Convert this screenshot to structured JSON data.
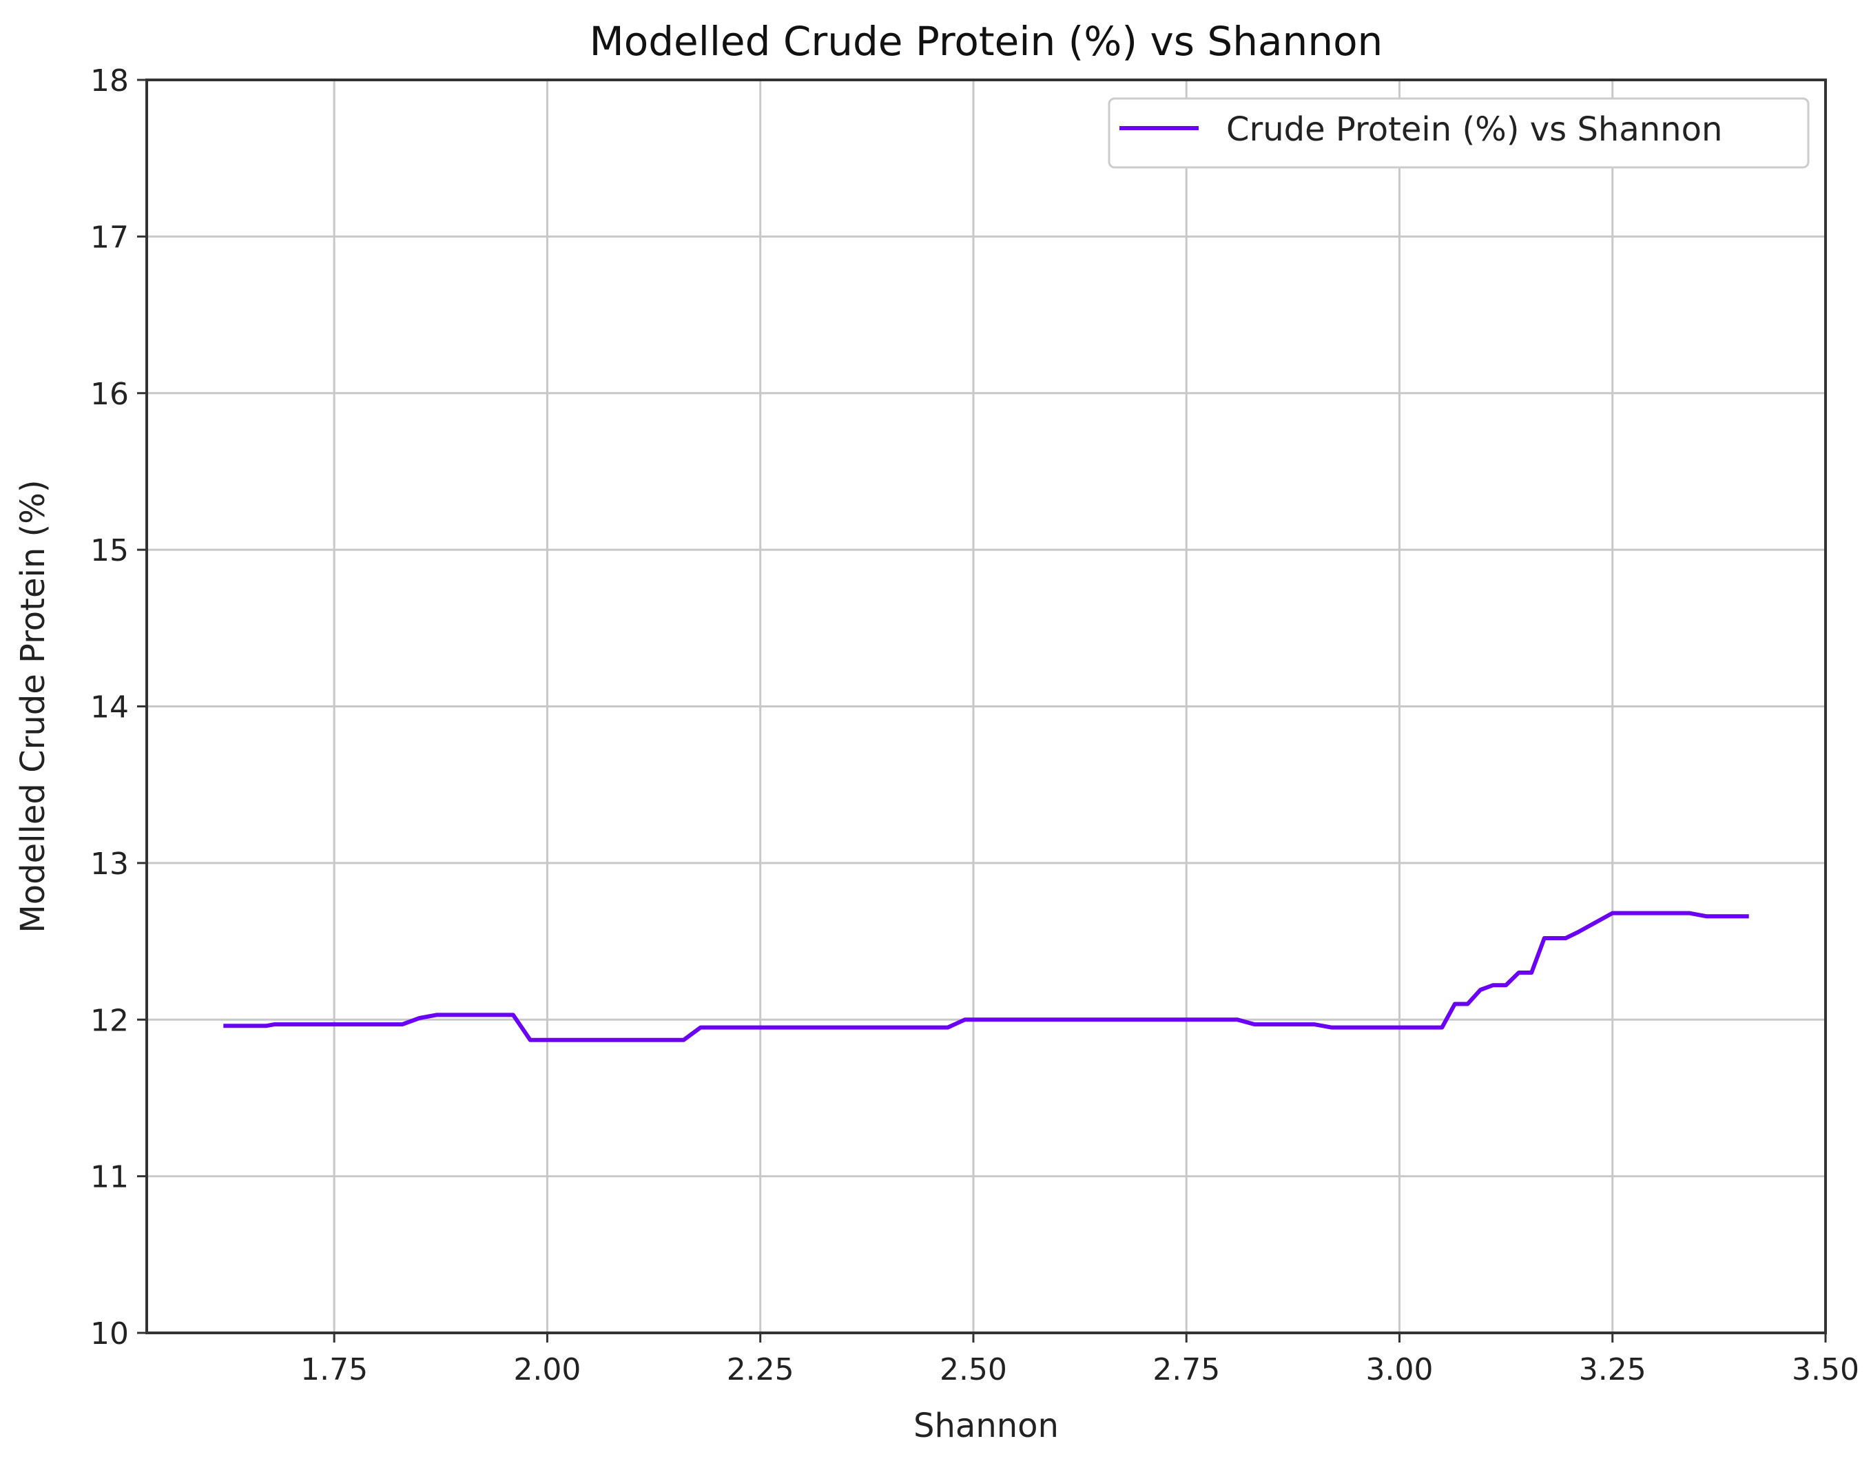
{
  "chart_data": {
    "type": "line",
    "title": "Modelled Crude Protein (%) vs Shannon",
    "xlabel": "Shannon",
    "ylabel": "Modelled Crude Protein (%)",
    "xlim": [
      1.53,
      3.5
    ],
    "ylim": [
      10,
      18
    ],
    "xticks": [
      1.75,
      2.0,
      2.25,
      2.5,
      2.75,
      3.0,
      3.25,
      3.5
    ],
    "xtick_labels": [
      "1.75",
      "2.00",
      "2.25",
      "2.50",
      "2.75",
      "3.00",
      "3.25",
      "3.50"
    ],
    "yticks": [
      10,
      11,
      12,
      13,
      14,
      15,
      16,
      17,
      18
    ],
    "ytick_labels": [
      "10",
      "11",
      "12",
      "13",
      "14",
      "15",
      "16",
      "17",
      "18"
    ],
    "grid": true,
    "legend_position": "top-right",
    "series": [
      {
        "name": "Crude Protein (%) vs Shannon",
        "color": "#6a00f4",
        "x": [
          1.62,
          1.67,
          1.68,
          1.83,
          1.85,
          1.87,
          1.96,
          1.98,
          2.16,
          2.18,
          2.47,
          2.49,
          2.81,
          2.83,
          2.9,
          2.92,
          3.05,
          3.065,
          3.08,
          3.095,
          3.11,
          3.125,
          3.14,
          3.155,
          3.17,
          3.185,
          3.195,
          3.21,
          3.25,
          3.34,
          3.36,
          3.41
        ],
        "y": [
          11.96,
          11.96,
          11.97,
          11.97,
          12.01,
          12.03,
          12.03,
          11.87,
          11.87,
          11.95,
          11.95,
          12.0,
          12.0,
          11.97,
          11.97,
          11.95,
          11.95,
          12.1,
          12.1,
          12.19,
          12.22,
          12.22,
          12.3,
          12.3,
          12.52,
          12.52,
          12.52,
          12.56,
          12.68,
          12.68,
          12.66,
          12.66
        ]
      }
    ]
  }
}
